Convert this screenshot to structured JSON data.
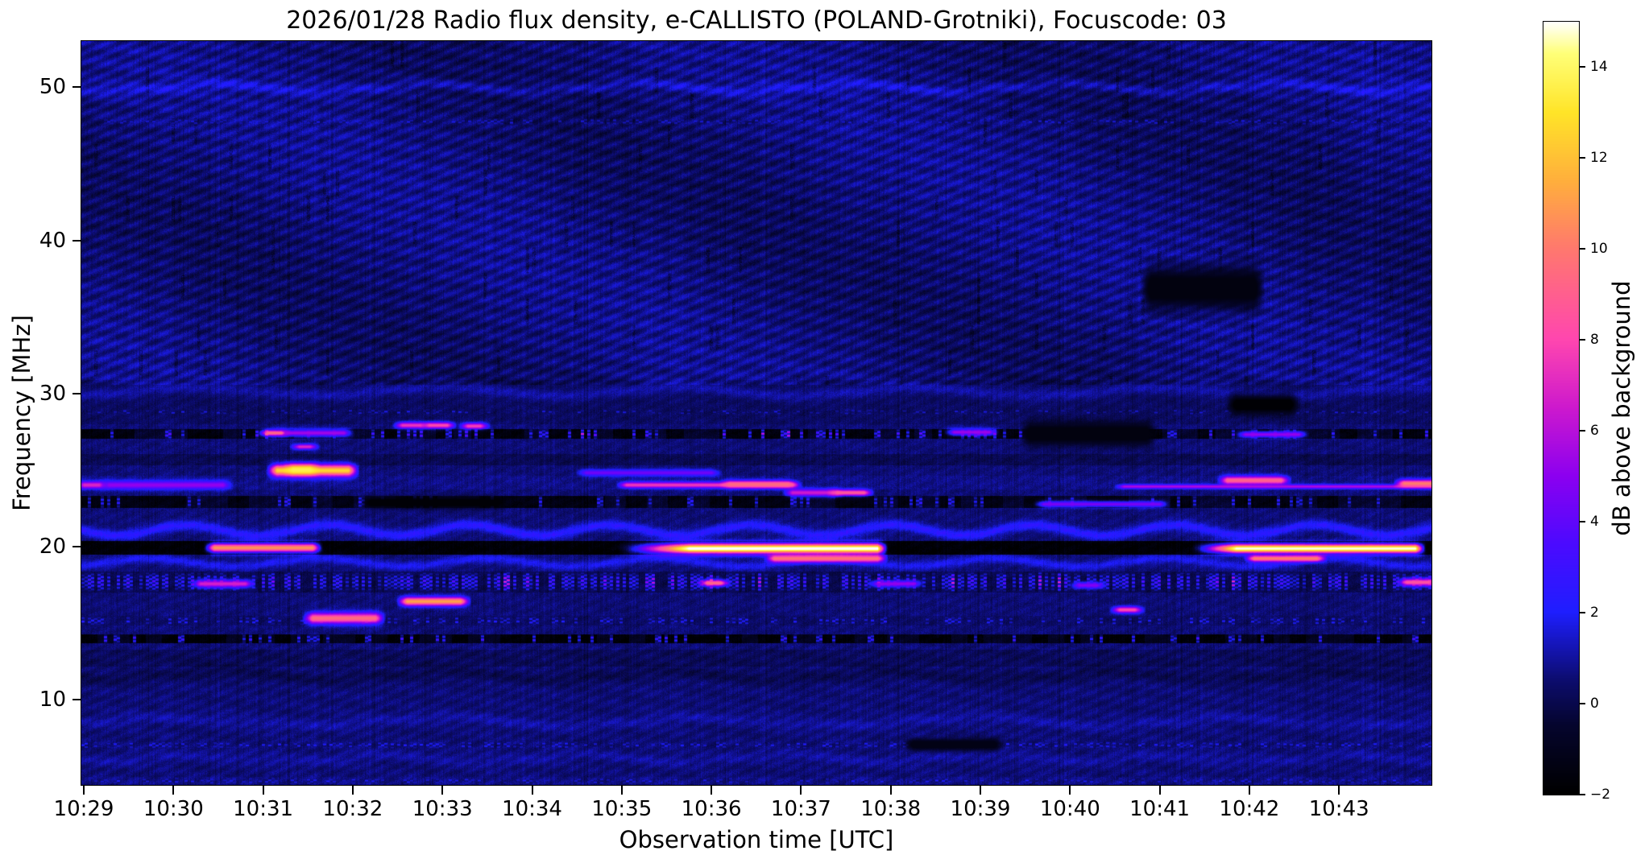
{
  "figure": {
    "title": "2026/01/28  Radio flux density, e-CALLISTO (POLAND-Grotniki), Focuscode: 03"
  },
  "axes": {
    "x": {
      "label": "Observation time [UTC]",
      "ticks": [
        "10:29",
        "10:30",
        "10:31",
        "10:32",
        "10:33",
        "10:34",
        "10:35",
        "10:36",
        "10:37",
        "10:38",
        "10:39",
        "10:40",
        "10:41",
        "10:42",
        "10:43"
      ]
    },
    "y": {
      "label": "Frequency [MHz]",
      "ticks": [
        "10",
        "20",
        "30",
        "40",
        "50"
      ],
      "tick_values": [
        10,
        20,
        30,
        40,
        50
      ]
    }
  },
  "colorbar": {
    "label": "dB above background",
    "tick_labels": [
      "14",
      "12",
      "10",
      "8",
      "6",
      "4",
      "2",
      "0",
      "−2"
    ],
    "tick_values": [
      14,
      12,
      10,
      8,
      6,
      4,
      2,
      0,
      -2
    ],
    "range_db": [
      -2,
      15
    ]
  },
  "chart_data": {
    "type": "heatmap",
    "title": "2026/01/28  Radio flux density, e-CALLISTO (POLAND-Grotniki), Focuscode: 03",
    "xlabel": "Observation time [UTC]",
    "ylabel": "Frequency [MHz]",
    "x_range_utc": [
      "10:29",
      "10:44"
    ],
    "x_tick_labels": [
      "10:29",
      "10:30",
      "10:31",
      "10:32",
      "10:33",
      "10:34",
      "10:35",
      "10:36",
      "10:37",
      "10:38",
      "10:39",
      "10:40",
      "10:41",
      "10:42",
      "10:43"
    ],
    "y_range_mhz": [
      4.5,
      53.0
    ],
    "y_tick_values_mhz": [
      10,
      20,
      30,
      40,
      50
    ],
    "colorbar_label": "dB above background",
    "colorbar_range_db": [
      -2,
      15
    ],
    "colorbar_tick_values": [
      14,
      12,
      10,
      8,
      6,
      4,
      2,
      0,
      -2
    ],
    "colormap": "gnuplot2-like: black - dark blue - blue - violet - magenta - pink - orange - yellow - white",
    "background_character": "dark blue noise (~0-1 dB) with diagonal interference weave above 30 MHz, wavy ionospheric bands 19-22 MHz, dark absorption bands at ~14, 20, 23 and 27.5 MHz (dashed black), dense RFI speckle band 17-18.4 MHz",
    "render": {
      "seed": 42,
      "background_db": 0.55,
      "colormap_stops": [
        [
          -2.0,
          0,
          0,
          0
        ],
        [
          -0.5,
          5,
          5,
          45
        ],
        [
          0.5,
          12,
          12,
          110
        ],
        [
          2.0,
          30,
          30,
          255
        ],
        [
          3.5,
          75,
          10,
          255
        ],
        [
          5.0,
          140,
          0,
          240
        ],
        [
          6.5,
          205,
          25,
          205
        ],
        [
          8.0,
          255,
          70,
          175
        ],
        [
          10.0,
          255,
          120,
          110
        ],
        [
          11.5,
          255,
          175,
          60
        ],
        [
          13.0,
          255,
          228,
          40
        ],
        [
          14.3,
          255,
          255,
          120
        ],
        [
          15.0,
          255,
          255,
          255
        ]
      ],
      "waves": [
        {
          "f": 50.0,
          "amp": 4,
          "lam": 260,
          "ph": 0.5,
          "s": 0.85,
          "sig": 4.5
        },
        {
          "f": 30.15,
          "amp": 5,
          "lam": 300,
          "ph": 1.8,
          "s": 0.8,
          "sig": 5
        },
        {
          "f": 21.1,
          "amp": 6.5,
          "lam": 175,
          "ph": 0.0,
          "s": 1.9,
          "sig": 4.5
        },
        {
          "f": 19.0,
          "amp": 5,
          "lam": 210,
          "ph": 2.2,
          "s": 1.35,
          "sig": 4
        },
        {
          "f": 11.6,
          "amp": 4,
          "lam": 280,
          "ph": 1.0,
          "s": -0.5,
          "sig": 6
        },
        {
          "f": 8.6,
          "amp": 5,
          "lam": 330,
          "ph": 2.6,
          "s": 0.5,
          "sig": 5
        },
        {
          "f": 6.2,
          "amp": 4,
          "lam": 240,
          "ph": 0.9,
          "s": 0.45,
          "sig": 5
        }
      ],
      "bands": [
        {
          "f0": 27.7,
          "f1": 27.05,
          "dv": -2.1,
          "dash": [
            22,
            0.45,
            1.0
          ],
          "speckle": [
            0.18,
            2.2,
            4.8,
            0.04
          ]
        },
        {
          "f0": 23.35,
          "f1": 22.55,
          "dv": -1.95,
          "dash": [
            26,
            0.4,
            0.9
          ],
          "speckle": [
            0.12,
            2.0,
            3.4,
            0
          ]
        },
        {
          "f0": 20.38,
          "f1": 19.5,
          "dv": -2.35
        },
        {
          "f0": 14.28,
          "f1": 13.72,
          "dv": -2.3,
          "dash": [
            20,
            0.42,
            0.9
          ],
          "speckle": [
            0.15,
            2.0,
            4.0,
            0
          ]
        },
        {
          "f0": 18.4,
          "f1": 17.05,
          "dv": -0.55,
          "speckle": [
            0.62,
            1.6,
            4.3,
            0.05
          ]
        },
        {
          "f0": 15.5,
          "f1": 14.85,
          "dv": -0.2,
          "speckle": [
            0.3,
            1.5,
            2.6,
            0
          ]
        },
        {
          "f0": 7.35,
          "f1": 6.8,
          "dv": 0.0,
          "speckle": [
            0.42,
            1.5,
            2.4,
            0
          ]
        },
        {
          "f0": 48.0,
          "f1": 47.55,
          "dv": 0.0,
          "speckle": [
            0.5,
            1.2,
            1.9,
            0
          ]
        },
        {
          "f0": 29.05,
          "f1": 28.6,
          "dv": 0.0,
          "speckle": [
            0.3,
            1.2,
            2.2,
            0
          ]
        },
        {
          "f0": 5.0,
          "f1": 4.45,
          "dv": 0.15,
          "speckle": [
            0.4,
            1.3,
            2.1,
            0
          ]
        },
        {
          "f0": 26.1,
          "f1": 25.35,
          "dv": -0.45
        },
        {
          "f0": 30.9,
          "f1": 28.0,
          "dv": -0.25
        },
        {
          "f0": 13.3,
          "f1": 12.2,
          "dv": -0.35
        },
        {
          "f0": 24.65,
          "f1": 23.75,
          "dv": 0.2
        }
      ],
      "features": [
        {
          "t0": 0.0,
          "t1": 0.17,
          "f": 24.05,
          "df": 0.35,
          "peak": 7.0,
          "desc": "violet dot at left edge ~24 MHz"
        },
        {
          "t0": 0.28,
          "t1": 1.55,
          "f": 24.05,
          "df": 0.4,
          "peak": 5.2,
          "desc": "blue-violet drifting streak 24 MHz 10:29-10:30.5"
        },
        {
          "t0": 1.45,
          "t1": 2.55,
          "f": 19.95,
          "df": 0.45,
          "peak": 10.8,
          "desc": "orange streak 20 MHz ~10:30.5-10:31.5"
        },
        {
          "t0": 2.15,
          "t1": 2.95,
          "f": 25.0,
          "df": 0.55,
          "peak": 12.6,
          "desc": "orange-yellow burst 25 MHz ~10:31.2-10:31.9"
        },
        {
          "t0": 2.33,
          "t1": 2.52,
          "f": 25.05,
          "df": 0.45,
          "peak": 13.6,
          "desc": "bright core of 25 MHz burst"
        },
        {
          "t0": 2.4,
          "t1": 2.52,
          "f": 26.55,
          "df": 0.25,
          "peak": 7.0,
          "desc": "magenta dot 26.5 MHz"
        },
        {
          "t0": 2.05,
          "t1": 2.2,
          "f": 27.45,
          "df": 0.3,
          "peak": 9.5,
          "desc": "pink dash 27.5 MHz ~10:31.1"
        },
        {
          "t0": 2.2,
          "t1": 2.9,
          "f": 27.45,
          "df": 0.35,
          "peak": 5.5,
          "desc": "blue streak 27.5 MHz"
        },
        {
          "t0": 3.55,
          "t1": 3.75,
          "f": 27.95,
          "df": 0.3,
          "peak": 7.5,
          "desc": "pink dot 28 MHz ~10:32.6"
        },
        {
          "t0": 3.85,
          "t1": 4.05,
          "f": 27.95,
          "df": 0.3,
          "peak": 8.2,
          "desc": "pink dot 28 MHz ~10:32.9"
        },
        {
          "t0": 4.28,
          "t1": 4.42,
          "f": 27.9,
          "df": 0.3,
          "peak": 7.8,
          "desc": "pink dot 28 MHz ~10:33.3"
        },
        {
          "t0": 2.55,
          "t1": 3.25,
          "f": 15.35,
          "df": 0.5,
          "peak": 9.6,
          "desc": "orange blob 15.4 MHz ~10:31.8"
        },
        {
          "t0": 3.6,
          "t1": 4.2,
          "f": 16.45,
          "df": 0.4,
          "peak": 11.2,
          "desc": "orange-yellow streak 16.5 MHz ~10:32.7"
        },
        {
          "t0": 5.6,
          "t1": 7.0,
          "f": 24.85,
          "df": 0.3,
          "peak": 4.4,
          "desc": "patchy blue segments 25 MHz"
        },
        {
          "t0": 6.05,
          "t1": 7.9,
          "f": 24.05,
          "df": 0.28,
          "peak": 7.6,
          "desc": "magenta line 24 MHz 10:35-10:37"
        },
        {
          "t0": 7.2,
          "t1": 7.85,
          "f": 24.1,
          "df": 0.33,
          "peak": 9.4,
          "desc": "pink core of 24 MHz line"
        },
        {
          "t0": 7.9,
          "t1": 8.35,
          "f": 23.55,
          "df": 0.35,
          "peak": 6.6,
          "desc": "purple blob 23.5 MHz"
        },
        {
          "t0": 8.4,
          "t1": 8.7,
          "f": 23.55,
          "df": 0.3,
          "peak": 8.8,
          "desc": "pink blob 23.5 MHz ~10:37.5"
        },
        {
          "t0": 6.75,
          "t1": 8.85,
          "f": 19.9,
          "df": 0.5,
          "peak": 15.3,
          "tl": 0.8,
          "desc": "intense white-yellow burst 20 MHz 10:36-10:38"
        },
        {
          "t0": 7.7,
          "t1": 8.85,
          "f": 19.25,
          "df": 0.35,
          "peak": 9.8,
          "desc": "orange tail below 20 MHz burst"
        },
        {
          "t0": 6.95,
          "t1": 7.1,
          "f": 17.65,
          "df": 0.3,
          "peak": 9.4,
          "desc": "orange dot 17.6 MHz"
        },
        {
          "t0": 1.3,
          "t1": 1.8,
          "f": 17.6,
          "df": 0.35,
          "peak": 6.8,
          "desc": "magenta cluster 17.6 MHz"
        },
        {
          "t0": 8.85,
          "t1": 9.25,
          "f": 17.6,
          "df": 0.3,
          "peak": 5.2,
          "desc": "violet dashes 17.6 MHz"
        },
        {
          "t0": 11.1,
          "t1": 11.3,
          "f": 17.5,
          "df": 0.3,
          "peak": 4.8,
          "desc": "violet dash 17.5 MHz"
        },
        {
          "t0": 10.7,
          "t1": 12.0,
          "f": 22.8,
          "df": 0.3,
          "peak": 4.6,
          "desc": "bright blue dash cluster 22.8 MHz"
        },
        {
          "t0": 9.7,
          "t1": 10.1,
          "f": 27.5,
          "df": 0.33,
          "peak": 5.4,
          "desc": "violet streak 27.5 MHz ~10:38.8"
        },
        {
          "t0": 12.95,
          "t1": 13.55,
          "f": 27.35,
          "df": 0.3,
          "peak": 5.2,
          "desc": "violet streak 27.4 MHz ~10:42"
        },
        {
          "t0": 12.75,
          "t1": 13.35,
          "f": 24.35,
          "df": 0.4,
          "peak": 9.2,
          "desc": "pink streak 24.4 MHz ~10:42"
        },
        {
          "t0": 11.6,
          "t1": 15.05,
          "f": 23.95,
          "df": 0.2,
          "peak": 5.8,
          "desc": "thin bright line 24 MHz right half"
        },
        {
          "t0": 14.72,
          "t1": 15.05,
          "f": 24.15,
          "df": 0.35,
          "peak": 10.2,
          "desc": "orange-pink line end at right edge"
        },
        {
          "t0": 12.85,
          "t1": 14.85,
          "f": 19.9,
          "df": 0.45,
          "peak": 15.0,
          "tl": 0.5,
          "desc": "white-yellow burst 20 MHz 10:42-10:43.8"
        },
        {
          "t0": 13.05,
          "t1": 13.75,
          "f": 19.25,
          "df": 0.3,
          "peak": 10.2,
          "desc": "orange streak below right 20 MHz burst"
        },
        {
          "t0": 11.55,
          "t1": 11.72,
          "f": 15.9,
          "df": 0.3,
          "peak": 8.2,
          "desc": "pink blob 15.9 MHz ~10:40.6"
        },
        {
          "t0": 14.75,
          "t1": 15.0,
          "f": 17.7,
          "df": 0.35,
          "peak": 8.6,
          "desc": "pink dashes 17.7 MHz right edge"
        },
        {
          "t0": 11.9,
          "t1": 13.05,
          "f": 36.9,
          "df": 1.7,
          "peak": -1.5,
          "desc": "dark absorption patch 35-38.5 MHz ~10:41"
        },
        {
          "t0": 12.85,
          "t1": 13.45,
          "f": 29.3,
          "df": 0.8,
          "peak": -1.85,
          "desc": "black blob 29 MHz ~10:42"
        },
        {
          "t0": 10.55,
          "t1": 11.85,
          "f": 27.4,
          "df": 1.0,
          "peak": -1.5,
          "desc": "dark checkered region 27 MHz 10:39.5-10:41"
        },
        {
          "t0": 9.25,
          "t1": 10.15,
          "f": 7.1,
          "df": 0.5,
          "peak": -1.3,
          "desc": "dark smudge 7 MHz ~10:38.5"
        },
        {
          "t0": 3.2,
          "t1": 4.6,
          "f": 22.9,
          "df": 0.45,
          "peak": -1.8,
          "desc": "black stretch 23 MHz 10:32-10:33.5"
        }
      ]
    }
  }
}
